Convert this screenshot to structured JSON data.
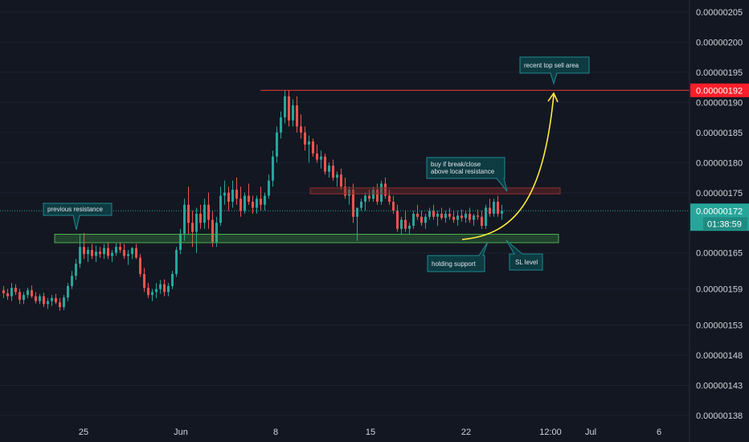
{
  "colors": {
    "background": "#131722",
    "up": "#26a69a",
    "down": "#ef5350",
    "grid": "#1c2030",
    "axis_text": "#d1d4dc",
    "resistance_line": "#e53935",
    "price_badge": "#ff1e2a",
    "current_badge": "#26a69a",
    "support_zone": "#4caf50",
    "arrow": "#ffeb3b",
    "callout_fill": "#0d3b41",
    "callout_border": "#1f8a91"
  },
  "chart_data": {
    "type": "candlestick",
    "ylim": [
      1.36e-06,
      2.07e-06
    ],
    "y_tick_labels": [
      {
        "value": 2.05e-06,
        "label": "0.00000205"
      },
      {
        "value": 2e-06,
        "label": "0.00000200"
      },
      {
        "value": 1.95e-06,
        "label": "0.00000195"
      },
      {
        "value": 1.9e-06,
        "label": "0.00000190"
      },
      {
        "value": 1.85e-06,
        "label": "0.00000185"
      },
      {
        "value": 1.8e-06,
        "label": "0.00000180"
      },
      {
        "value": 1.75e-06,
        "label": "0.00000175"
      },
      {
        "value": 1.65e-06,
        "label": "0.00000165"
      },
      {
        "value": 1.59e-06,
        "label": "0.00000159"
      },
      {
        "value": 1.53e-06,
        "label": "0.00000153"
      },
      {
        "value": 1.48e-06,
        "label": "0.00000148"
      },
      {
        "value": 1.43e-06,
        "label": "0.00000143"
      },
      {
        "value": 1.38e-06,
        "label": "0.00000138"
      }
    ],
    "x_tick_labels": [
      "25",
      "Jun",
      "8",
      "15",
      "22",
      "12:00",
      "Jul",
      "6"
    ],
    "price_badge": {
      "value": 1.92e-06,
      "label": "0.00000192"
    },
    "current_price": {
      "value": 1.72e-06,
      "label": "0.00000172",
      "countdown": "01:38:59"
    },
    "resistance_level": 1.92e-06,
    "local_resistance_zone": [
      1.748e-06,
      1.758e-06
    ],
    "support_zone": [
      1.667e-06,
      1.681e-06
    ],
    "candles_ohlc": [
      [
        1.588,
        1.595,
        1.575,
        1.583
      ],
      [
        1.583,
        1.59,
        1.572,
        1.578
      ],
      [
        1.578,
        1.6,
        1.57,
        1.592
      ],
      [
        1.592,
        1.598,
        1.58,
        1.585
      ],
      [
        1.585,
        1.59,
        1.565,
        1.572
      ],
      [
        1.572,
        1.585,
        1.565,
        1.58
      ],
      [
        1.58,
        1.592,
        1.575,
        1.588
      ],
      [
        1.588,
        1.596,
        1.575,
        1.578
      ],
      [
        1.578,
        1.585,
        1.566,
        1.57
      ],
      [
        1.57,
        1.582,
        1.565,
        1.578
      ],
      [
        1.578,
        1.584,
        1.56,
        1.565
      ],
      [
        1.565,
        1.575,
        1.557,
        1.57
      ],
      [
        1.57,
        1.58,
        1.562,
        1.575
      ],
      [
        1.575,
        1.582,
        1.565,
        1.568
      ],
      [
        1.568,
        1.575,
        1.554,
        1.56
      ],
      [
        1.56,
        1.58,
        1.555,
        1.576
      ],
      [
        1.576,
        1.6,
        1.57,
        1.595
      ],
      [
        1.595,
        1.62,
        1.59,
        1.612
      ],
      [
        1.612,
        1.64,
        1.605,
        1.632
      ],
      [
        1.632,
        1.68,
        1.625,
        1.66
      ],
      [
        1.66,
        1.683,
        1.64,
        1.648
      ],
      [
        1.648,
        1.66,
        1.635,
        1.655
      ],
      [
        1.655,
        1.665,
        1.64,
        1.645
      ],
      [
        1.645,
        1.662,
        1.635,
        1.652
      ],
      [
        1.652,
        1.66,
        1.642,
        1.648
      ],
      [
        1.648,
        1.665,
        1.64,
        1.658
      ],
      [
        1.658,
        1.668,
        1.64,
        1.645
      ],
      [
        1.645,
        1.655,
        1.635,
        1.65
      ],
      [
        1.65,
        1.666,
        1.645,
        1.66
      ],
      [
        1.66,
        1.668,
        1.65,
        1.655
      ],
      [
        1.655,
        1.665,
        1.64,
        1.645
      ],
      [
        1.645,
        1.655,
        1.63,
        1.648
      ],
      [
        1.648,
        1.66,
        1.64,
        1.658
      ],
      [
        1.658,
        1.665,
        1.64,
        1.642
      ],
      [
        1.642,
        1.648,
        1.61,
        1.615
      ],
      [
        1.615,
        1.625,
        1.585,
        1.592
      ],
      [
        1.592,
        1.6,
        1.575,
        1.58
      ],
      [
        1.58,
        1.59,
        1.57,
        1.585
      ],
      [
        1.585,
        1.6,
        1.575,
        1.59
      ],
      [
        1.59,
        1.605,
        1.582,
        1.598
      ],
      [
        1.598,
        1.606,
        1.578,
        1.585
      ],
      [
        1.585,
        1.6,
        1.578,
        1.595
      ],
      [
        1.595,
        1.62,
        1.59,
        1.615
      ],
      [
        1.615,
        1.66,
        1.61,
        1.655
      ],
      [
        1.655,
        1.69,
        1.648,
        1.682
      ],
      [
        1.682,
        1.74,
        1.67,
        1.73
      ],
      [
        1.73,
        1.76,
        1.68,
        1.7
      ],
      [
        1.7,
        1.72,
        1.66,
        1.685
      ],
      [
        1.685,
        1.725,
        1.65,
        1.715
      ],
      [
        1.715,
        1.73,
        1.69,
        1.7
      ],
      [
        1.7,
        1.74,
        1.69,
        1.73
      ],
      [
        1.73,
        1.75,
        1.69,
        1.705
      ],
      [
        1.705,
        1.72,
        1.66,
        1.668
      ],
      [
        1.668,
        1.71,
        1.66,
        1.7
      ],
      [
        1.7,
        1.76,
        1.695,
        1.745
      ],
      [
        1.745,
        1.77,
        1.73,
        1.75
      ],
      [
        1.75,
        1.76,
        1.72,
        1.735
      ],
      [
        1.735,
        1.77,
        1.725,
        1.755
      ],
      [
        1.755,
        1.775,
        1.73,
        1.74
      ],
      [
        1.74,
        1.76,
        1.71,
        1.72
      ],
      [
        1.72,
        1.75,
        1.715,
        1.745
      ],
      [
        1.745,
        1.765,
        1.73,
        1.735
      ],
      [
        1.735,
        1.745,
        1.715,
        1.725
      ],
      [
        1.725,
        1.745,
        1.715,
        1.74
      ],
      [
        1.74,
        1.76,
        1.72,
        1.73
      ],
      [
        1.73,
        1.75,
        1.72,
        1.745
      ],
      [
        1.745,
        1.78,
        1.74,
        1.77
      ],
      [
        1.77,
        1.82,
        1.76,
        1.81
      ],
      [
        1.81,
        1.86,
        1.8,
        1.85
      ],
      [
        1.85,
        1.885,
        1.84,
        1.875
      ],
      [
        1.875,
        1.92,
        1.865,
        1.91
      ],
      [
        1.91,
        1.92,
        1.86,
        1.87
      ],
      [
        1.87,
        1.905,
        1.86,
        1.895
      ],
      [
        1.895,
        1.91,
        1.85,
        1.86
      ],
      [
        1.86,
        1.88,
        1.84,
        1.85
      ],
      [
        1.85,
        1.86,
        1.82,
        1.83
      ],
      [
        1.83,
        1.845,
        1.8,
        1.835
      ],
      [
        1.835,
        1.84,
        1.81,
        1.815
      ],
      [
        1.815,
        1.83,
        1.8,
        1.805
      ],
      [
        1.805,
        1.82,
        1.79,
        1.81
      ],
      [
        1.81,
        1.815,
        1.78,
        1.785
      ],
      [
        1.785,
        1.8,
        1.775,
        1.795
      ],
      [
        1.795,
        1.805,
        1.77,
        1.775
      ],
      [
        1.775,
        1.785,
        1.76,
        1.78
      ],
      [
        1.78,
        1.79,
        1.755,
        1.76
      ],
      [
        1.76,
        1.775,
        1.74,
        1.745
      ],
      [
        1.745,
        1.76,
        1.73,
        1.755
      ],
      [
        1.755,
        1.765,
        1.7,
        1.71
      ],
      [
        1.71,
        1.72,
        1.67,
        1.725
      ],
      [
        1.725,
        1.74,
        1.72,
        1.735
      ],
      [
        1.735,
        1.75,
        1.72,
        1.745
      ],
      [
        1.745,
        1.755,
        1.735,
        1.74
      ],
      [
        1.74,
        1.76,
        1.735,
        1.755
      ],
      [
        1.755,
        1.765,
        1.73,
        1.735
      ],
      [
        1.735,
        1.77,
        1.73,
        1.765
      ],
      [
        1.765,
        1.775,
        1.74,
        1.745
      ],
      [
        1.745,
        1.755,
        1.73,
        1.735
      ],
      [
        1.735,
        1.745,
        1.715,
        1.72
      ],
      [
        1.72,
        1.73,
        1.685,
        1.69
      ],
      [
        1.69,
        1.71,
        1.68,
        1.705
      ],
      [
        1.705,
        1.72,
        1.685,
        1.69
      ],
      [
        1.69,
        1.7,
        1.68,
        1.695
      ],
      [
        1.695,
        1.72,
        1.69,
        1.715
      ],
      [
        1.715,
        1.73,
        1.705,
        1.71
      ],
      [
        1.71,
        1.72,
        1.695,
        1.7
      ],
      [
        1.7,
        1.715,
        1.69,
        1.71
      ],
      [
        1.71,
        1.725,
        1.705,
        1.72
      ],
      [
        1.72,
        1.73,
        1.705,
        1.71
      ],
      [
        1.71,
        1.72,
        1.695,
        1.715
      ],
      [
        1.715,
        1.725,
        1.705,
        1.708
      ],
      [
        1.708,
        1.72,
        1.7,
        1.715
      ],
      [
        1.715,
        1.725,
        1.705,
        1.71
      ],
      [
        1.71,
        1.72,
        1.7,
        1.705
      ],
      [
        1.705,
        1.72,
        1.695,
        1.712
      ],
      [
        1.712,
        1.722,
        1.702,
        1.708
      ],
      [
        1.708,
        1.72,
        1.7,
        1.715
      ],
      [
        1.715,
        1.725,
        1.7,
        1.705
      ],
      [
        1.705,
        1.715,
        1.695,
        1.712
      ],
      [
        1.712,
        1.722,
        1.705,
        1.71
      ],
      [
        1.71,
        1.72,
        1.69,
        1.695
      ],
      [
        1.695,
        1.73,
        1.69,
        1.725
      ],
      [
        1.725,
        1.74,
        1.71,
        1.715
      ],
      [
        1.715,
        1.74,
        1.71,
        1.735
      ],
      [
        1.735,
        1.745,
        1.71,
        1.715
      ],
      [
        1.715,
        1.73,
        1.705,
        1.72
      ]
    ]
  },
  "annotations": {
    "previous_resistance": "previous resistance",
    "recent_top": "recent top sell area",
    "buy_break_line1": "buy if break/close",
    "buy_break_line2": "above local resistance",
    "holding_support": "holding support",
    "sl_level": "SL level"
  }
}
